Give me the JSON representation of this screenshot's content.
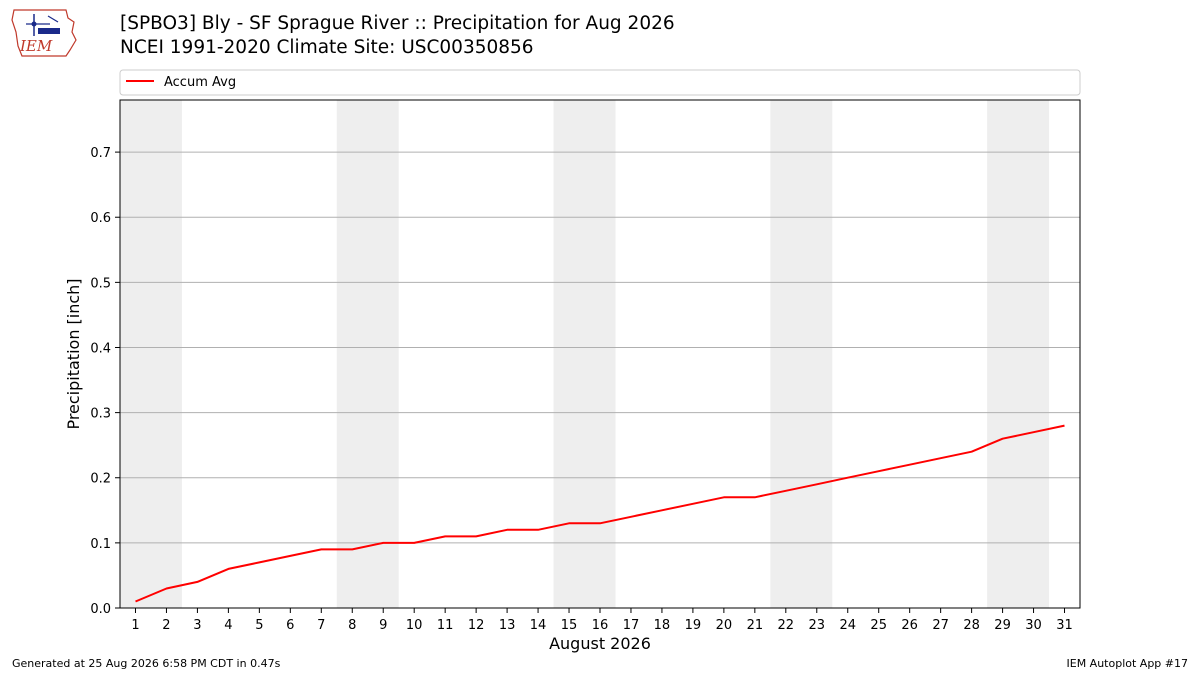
{
  "header": {
    "title_line1": "[SPBO3] Bly - SF Sprague River :: Precipitation for Aug 2026",
    "title_line2": "NCEI 1991-2020 Climate Site: USC00350856",
    "logo_text": "IEM"
  },
  "footer": {
    "left": "Generated at 25 Aug 2026 6:58 PM CDT in 0.47s",
    "right": "IEM Autoplot App #17"
  },
  "colors": {
    "line": "#ff0000",
    "weekend_band": "#eeeeee",
    "grid": "#b0b0b0"
  },
  "chart_data": {
    "type": "line",
    "xlabel": "August 2026",
    "ylabel": "Precipitation [inch]",
    "xlim": [
      0.5,
      31.5
    ],
    "ylim": [
      0,
      0.78
    ],
    "x_ticks": [
      1,
      2,
      3,
      4,
      5,
      6,
      7,
      8,
      9,
      10,
      11,
      12,
      13,
      14,
      15,
      16,
      17,
      18,
      19,
      20,
      21,
      22,
      23,
      24,
      25,
      26,
      27,
      28,
      29,
      30,
      31
    ],
    "y_ticks": [
      0.0,
      0.1,
      0.2,
      0.3,
      0.4,
      0.5,
      0.6,
      0.7
    ],
    "y_tick_labels": [
      "0.0",
      "0.1",
      "0.2",
      "0.3",
      "0.4",
      "0.5",
      "0.6",
      "0.7"
    ],
    "grid": "horizontal",
    "legend_position": "top",
    "weekend_bands": [
      [
        1,
        2
      ],
      [
        8,
        9
      ],
      [
        15,
        16
      ],
      [
        22,
        23
      ],
      [
        29,
        30
      ]
    ],
    "series": [
      {
        "name": "Accum Avg",
        "x": [
          1,
          2,
          3,
          4,
          5,
          6,
          7,
          8,
          9,
          10,
          11,
          12,
          13,
          14,
          15,
          16,
          17,
          18,
          19,
          20,
          21,
          22,
          23,
          24,
          25,
          26,
          27,
          28,
          29,
          30,
          31
        ],
        "values": [
          0.01,
          0.03,
          0.04,
          0.06,
          0.07,
          0.08,
          0.09,
          0.09,
          0.1,
          0.1,
          0.11,
          0.11,
          0.12,
          0.12,
          0.13,
          0.13,
          0.14,
          0.15,
          0.16,
          0.17,
          0.17,
          0.18,
          0.19,
          0.2,
          0.21,
          0.22,
          0.23,
          0.24,
          0.26,
          0.27,
          0.28
        ]
      }
    ]
  }
}
